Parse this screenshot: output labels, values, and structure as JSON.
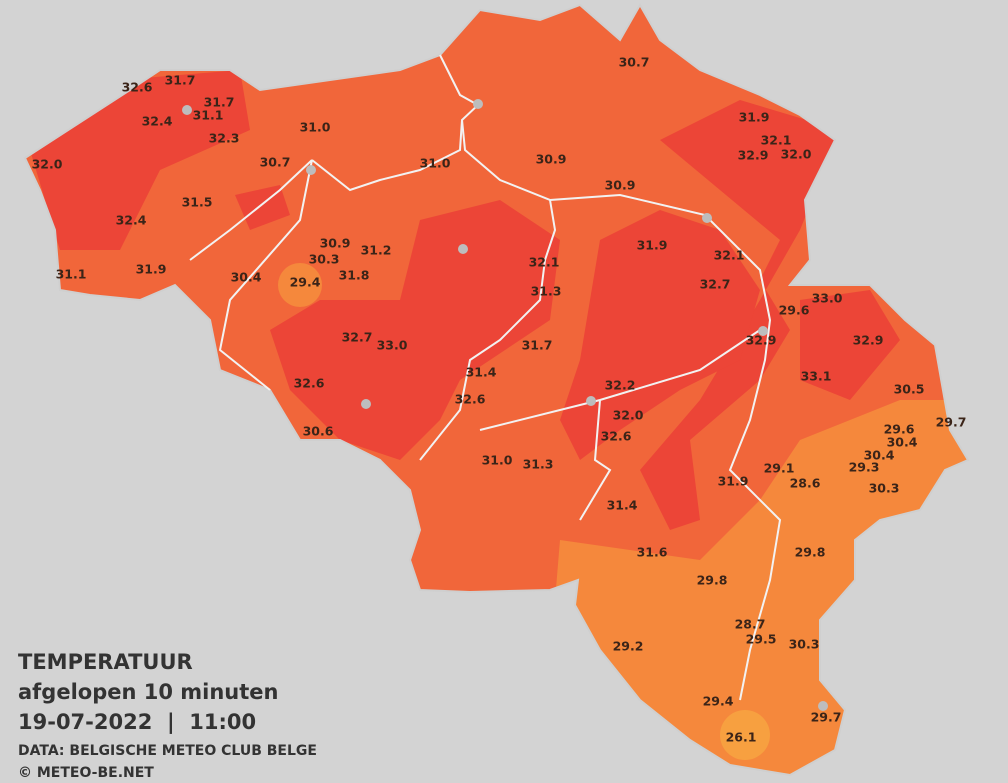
{
  "title": "TEMPERATUUR",
  "subtitle": "afgelopen 10 minuten",
  "datetime": "19-07-2022  |  11:00",
  "source": "DATA: BELGISCHE METEO CLUB BELGE",
  "copyright": "© METEO-BE.NET",
  "stations": [
    "32.6",
    "31.7",
    "31.7",
    "31.1",
    "32.4",
    "32.3",
    "31.0",
    "32.0",
    "30.7",
    "31.0",
    "30.9",
    "30.7",
    "31.9",
    "32.1",
    "32.9",
    "32.0",
    "30.9",
    "32.4",
    "31.5",
    "30.9",
    "31.2",
    "30.3",
    "31.8",
    "29.4",
    "30.4",
    "31.1",
    "31.9",
    "32.1",
    "31.9",
    "32.1",
    "31.3",
    "32.7",
    "33.0",
    "29.6",
    "32.7",
    "33.0",
    "31.7",
    "32.9",
    "32.9",
    "31.4",
    "32.6",
    "32.6",
    "32.2",
    "33.1",
    "30.5",
    "32.0",
    "30.6",
    "32.6",
    "29.6",
    "29.7",
    "30.4",
    "30.4",
    "29.3",
    "29.1",
    "28.6",
    "30.3",
    "31.0",
    "31.3",
    "31.9",
    "31.4",
    "31.6",
    "29.8",
    "29.8",
    "28.7",
    "29.5",
    "30.3",
    "29.2",
    "29.4",
    "29.7",
    "26.1"
  ]
}
